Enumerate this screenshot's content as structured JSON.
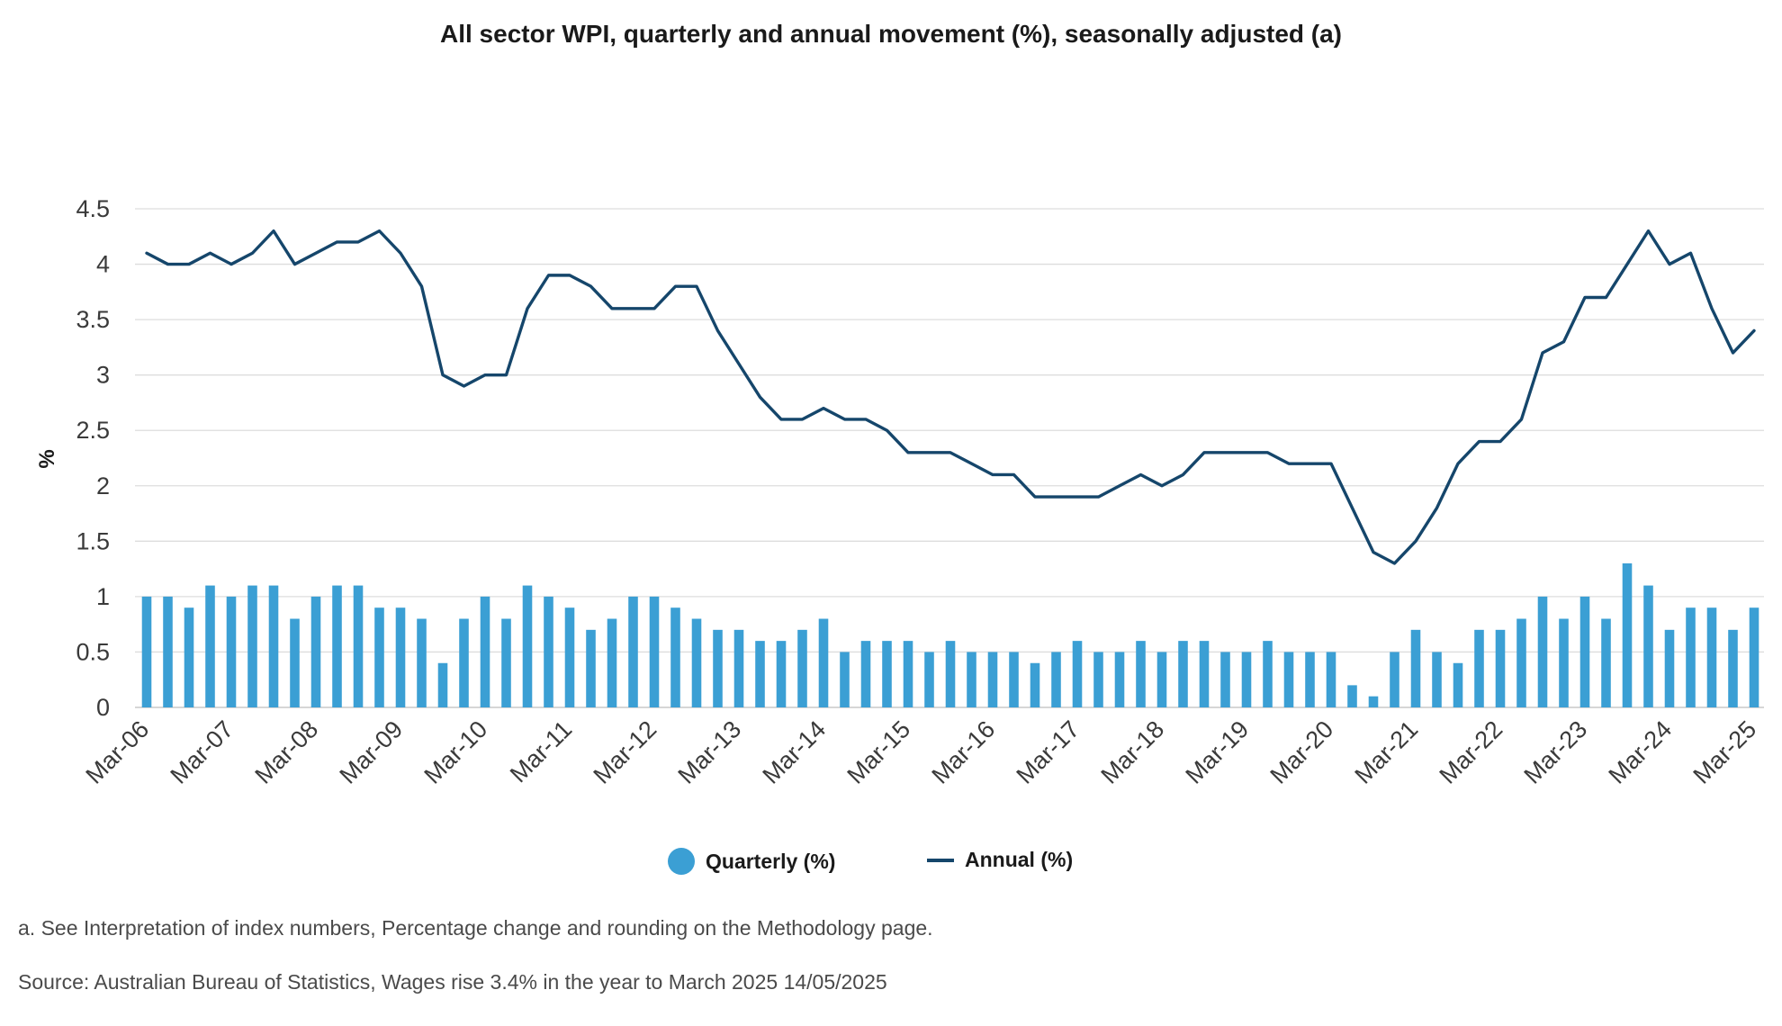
{
  "chart_data": {
    "type": "bar+line",
    "title": "All sector WPI, quarterly and annual movement (%), seasonally adjusted (a)",
    "ylabel": "%",
    "xlabel": "",
    "ylim": [
      0,
      4.5
    ],
    "yticks": [
      "0",
      "0.5",
      "1",
      "1.5",
      "2",
      "2.5",
      "3",
      "3.5",
      "4",
      "4.5"
    ],
    "grid": true,
    "legend_position": "bottom",
    "x_tick_labels": [
      "Mar-06",
      "Mar-07",
      "Mar-08",
      "Mar-09",
      "Mar-10",
      "Mar-11",
      "Mar-12",
      "Mar-13",
      "Mar-14",
      "Mar-15",
      "Mar-16",
      "Mar-17",
      "Mar-18",
      "Mar-19",
      "Mar-20",
      "Mar-21",
      "Mar-22",
      "Mar-23",
      "Mar-24",
      "Mar-25"
    ],
    "x_start": "Mar-06",
    "x_end": "Mar-25",
    "series": [
      {
        "name": "Quarterly (%)",
        "type": "bar",
        "color": "#3b9fd4",
        "values": [
          1.0,
          1.0,
          0.9,
          1.1,
          1.0,
          1.1,
          1.1,
          0.8,
          1.0,
          1.1,
          1.1,
          0.9,
          0.9,
          0.8,
          0.4,
          0.8,
          1.0,
          0.8,
          1.1,
          1.0,
          0.9,
          0.7,
          0.8,
          1.0,
          1.0,
          0.9,
          0.8,
          0.7,
          0.7,
          0.6,
          0.6,
          0.7,
          0.8,
          0.5,
          0.6,
          0.6,
          0.6,
          0.5,
          0.6,
          0.5,
          0.5,
          0.5,
          0.4,
          0.5,
          0.6,
          0.5,
          0.5,
          0.6,
          0.5,
          0.6,
          0.6,
          0.5,
          0.5,
          0.6,
          0.5,
          0.5,
          0.5,
          0.2,
          0.1,
          0.5,
          0.7,
          0.5,
          0.4,
          0.7,
          0.7,
          0.8,
          1.0,
          0.8,
          1.0,
          0.8,
          1.3,
          1.1,
          0.7,
          0.9,
          0.9,
          0.7,
          0.9
        ]
      },
      {
        "name": "Annual (%)",
        "type": "line",
        "color": "#15466b",
        "values": [
          4.1,
          4.0,
          4.0,
          4.1,
          4.0,
          4.1,
          4.3,
          4.0,
          4.1,
          4.2,
          4.2,
          4.3,
          4.1,
          3.8,
          3.0,
          2.9,
          3.0,
          3.0,
          3.6,
          3.9,
          3.9,
          3.8,
          3.6,
          3.6,
          3.6,
          3.8,
          3.8,
          3.4,
          3.1,
          2.8,
          2.6,
          2.6,
          2.7,
          2.6,
          2.6,
          2.5,
          2.3,
          2.3,
          2.3,
          2.2,
          2.1,
          2.1,
          1.9,
          1.9,
          1.9,
          1.9,
          2.0,
          2.1,
          2.0,
          2.1,
          2.3,
          2.3,
          2.3,
          2.3,
          2.2,
          2.2,
          2.2,
          1.8,
          1.4,
          1.3,
          1.5,
          1.8,
          2.2,
          2.4,
          2.4,
          2.6,
          3.2,
          3.3,
          3.7,
          3.7,
          4.0,
          4.3,
          4.0,
          4.1,
          3.6,
          3.2,
          3.4
        ]
      }
    ]
  },
  "legend": {
    "quarterly_label": "Quarterly (%)",
    "annual_label": "Annual (%)"
  },
  "footnotes": {
    "note_a": "a. See Interpretation of index numbers, Percentage change and rounding on the Methodology page.",
    "source": "Source: Australian Bureau of Statistics, Wages rise 3.4% in the year to March 2025 14/05/2025"
  }
}
